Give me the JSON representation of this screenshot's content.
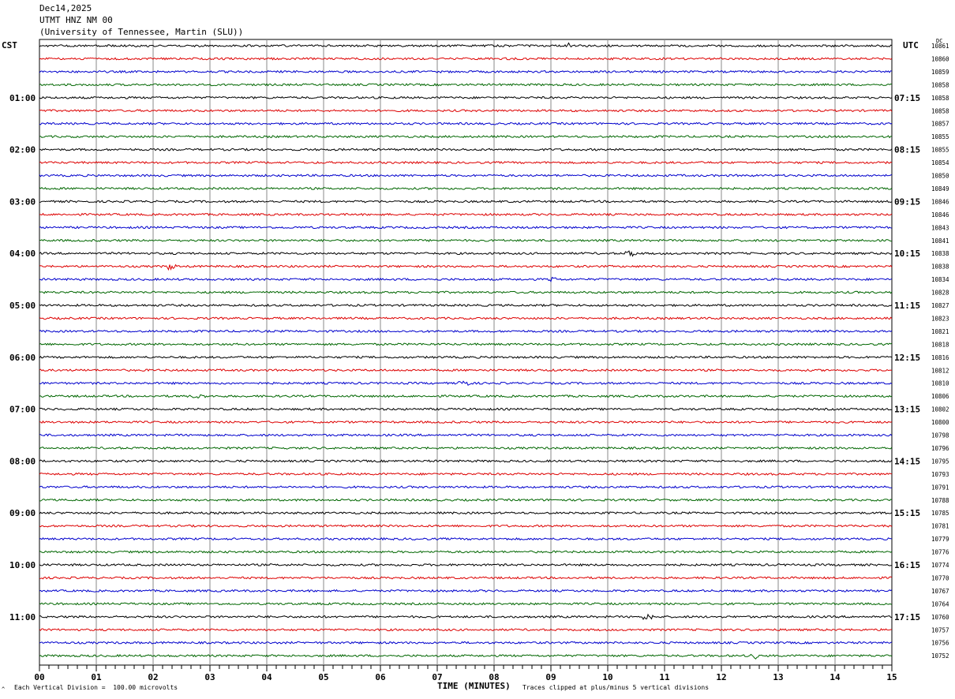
{
  "header": {
    "date": "Dec14,2025",
    "station": "UTMT HNZ NM 00",
    "institution": "(University of Tennessee, Martin (SLU))"
  },
  "left_label": "CST",
  "right_label": "UTC",
  "dc_label": "DC",
  "footer": {
    "scale": "Each Vertical Division =  100.00 microvolts",
    "clip": "Traces clipped at plus/minus 5 vertical divisions",
    "mark": "^"
  },
  "chart_data": {
    "type": "line",
    "xlabel": "TIME (MINUTES)",
    "xlim": [
      0,
      15
    ],
    "x_ticks": [
      "00",
      "01",
      "02",
      "03",
      "04",
      "05",
      "06",
      "07",
      "08",
      "09",
      "10",
      "11",
      "12",
      "13",
      "14",
      "15"
    ],
    "trace_colors": [
      "#000000",
      "#dd0000",
      "#0000cc",
      "#006600"
    ],
    "left_hour_labels": [
      "01:00",
      "02:00",
      "03:00",
      "04:00",
      "05:00",
      "06:00",
      "07:00",
      "08:00",
      "09:00",
      "10:00",
      "11:00"
    ],
    "right_hour_labels": [
      "07:15",
      "08:15",
      "09:15",
      "10:15",
      "11:15",
      "12:15",
      "13:15",
      "14:15",
      "15:15",
      "16:15",
      "17:15"
    ],
    "dc_values": [
      "10861",
      "10860",
      "10859",
      "10858",
      "10858",
      "10858",
      "10857",
      "10855",
      "10855",
      "10854",
      "10850",
      "10849",
      "10846",
      "10846",
      "10843",
      "10841",
      "10838",
      "10838",
      "10834",
      "10828",
      "10827",
      "10823",
      "10821",
      "10818",
      "10816",
      "10812",
      "10810",
      "10806",
      "10802",
      "10800",
      "10798",
      "10796",
      "10795",
      "10793",
      "10791",
      "10788",
      "10785",
      "10781",
      "10779",
      "10776",
      "10774",
      "10770",
      "10767",
      "10764",
      "10760",
      "10757",
      "10756",
      "10752"
    ],
    "events": [
      {
        "trace": 17,
        "minute": 2.3,
        "amp": 5
      },
      {
        "trace": 18,
        "minute": 9.0,
        "amp": 3
      },
      {
        "trace": 26,
        "minute": 7.45,
        "amp": 7
      },
      {
        "trace": 27,
        "minute": 2.8,
        "amp": 6
      },
      {
        "trace": 16,
        "minute": 10.4,
        "amp": 4
      },
      {
        "trace": 44,
        "minute": 10.7,
        "amp": 5
      },
      {
        "trace": 47,
        "minute": 12.6,
        "amp": 4
      },
      {
        "trace": 0,
        "minute": 9.3,
        "amp": 3
      }
    ]
  }
}
